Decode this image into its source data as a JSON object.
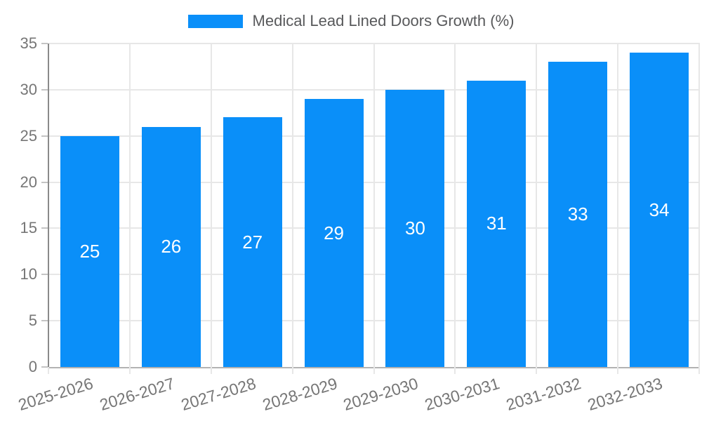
{
  "legend": {
    "label": "Medical Lead Lined Doors Growth (%)"
  },
  "colors": {
    "bar_fill": "#0a8ff9",
    "grid_line": "#e7e7e7",
    "y_axis_line": "#8a8a8a",
    "x_axis_line": "#b3b3b3",
    "tick_mark": "#c4c4c4",
    "tick_label_text": "#767676",
    "legend_label_text": "#58595b",
    "bar_value_text": "#ffffff",
    "background": "#ffffff"
  },
  "chart_data": {
    "type": "bar",
    "title": "Medical Lead Lined Doors Growth (%)",
    "categories": [
      "2025-2026",
      "2026-2027",
      "2027-2028",
      "2028-2029",
      "2029-2030",
      "2030-2031",
      "2031-2032",
      "2032-2033"
    ],
    "series": [
      {
        "name": "Medical Lead Lined Doors Growth (%)",
        "values": [
          25,
          26,
          27,
          29,
          30,
          31,
          33,
          34
        ]
      }
    ],
    "xlabel": "",
    "ylabel": "",
    "ylim": [
      0,
      35
    ],
    "yticks": [
      0,
      5,
      10,
      15,
      20,
      25,
      30,
      35
    ],
    "grid": true,
    "legend_position": "top",
    "value_labels": "inside-center",
    "x_tick_rotation_deg": -17
  }
}
